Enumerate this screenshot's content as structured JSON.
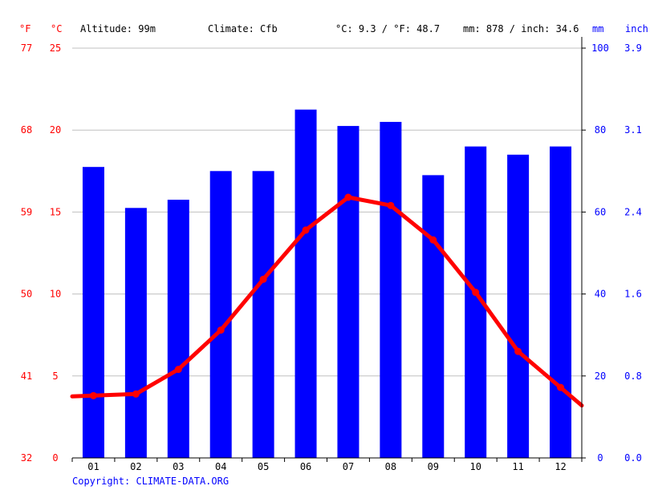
{
  "header": {
    "unit_f": "°F",
    "unit_c": "°C",
    "altitude": "Altitude: 99m",
    "climate": "Climate: Cfb",
    "temp_avg": "°C: 9.3 / °F: 48.7",
    "precip_total": "mm: 878 / inch: 34.6",
    "unit_mm": "mm",
    "unit_inch": "inch"
  },
  "copyright": "Copyright: CLIMATE-DATA.ORG",
  "colors": {
    "temperature": "#ff0000",
    "precipitation": "#0000ff",
    "grid": "#c0c0c0",
    "axis": "#000000"
  },
  "chart_data": {
    "type": "bar",
    "categories": [
      "01",
      "02",
      "03",
      "04",
      "05",
      "06",
      "07",
      "08",
      "09",
      "10",
      "11",
      "12"
    ],
    "series": [
      {
        "type": "bar",
        "axis": "right",
        "values": [
          71,
          61,
          63,
          70,
          70,
          85,
          81,
          82,
          69,
          76,
          74,
          76
        ]
      },
      {
        "type": "line",
        "axis": "left",
        "values": [
          3.8,
          3.9,
          5.4,
          7.8,
          10.9,
          13.9,
          15.9,
          15.4,
          13.3,
          10.1,
          6.5,
          4.3
        ]
      }
    ],
    "left_axis_c": {
      "ticks": [
        "0",
        "5",
        "10",
        "15",
        "20",
        "25"
      ],
      "range": [
        0,
        25
      ]
    },
    "left_axis_f": {
      "ticks": [
        "32",
        "41",
        "50",
        "59",
        "68",
        "77"
      ]
    },
    "right_axis_mm": {
      "ticks": [
        "0",
        "20",
        "40",
        "60",
        "80",
        "100"
      ],
      "range": [
        0,
        100
      ]
    },
    "right_axis_inch": {
      "ticks": [
        "0.0",
        "0.8",
        "1.6",
        "2.4",
        "3.1",
        "3.9"
      ]
    },
    "grid": true
  }
}
